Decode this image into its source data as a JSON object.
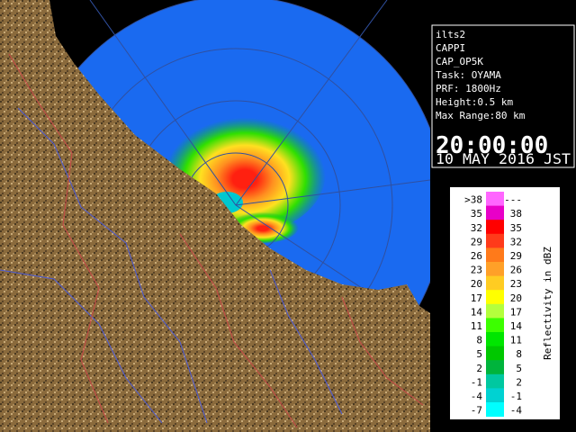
{
  "info": {
    "lines": [
      "ilts2",
      "CAPPI",
      "CAP_OP5K",
      "Task: OYAMA",
      "PRF: 1800Hz",
      "Height:0.5 km",
      "Max Range:80 km"
    ],
    "time": "20:00:00",
    "date": "10 MAY 2016 JST"
  },
  "legend": {
    "unit_label": "Reflectivity in dBZ",
    "rows": [
      {
        "low": ">38",
        "high": "---",
        "color": "#ff66ff"
      },
      {
        "low": "35",
        "high": "38",
        "color": "#e800c8"
      },
      {
        "low": "32",
        "high": "35",
        "color": "#ff0000"
      },
      {
        "low": "29",
        "high": "32",
        "color": "#ff3a1a"
      },
      {
        "low": "26",
        "high": "29",
        "color": "#ff7a1a"
      },
      {
        "low": "23",
        "high": "26",
        "color": "#ffa028"
      },
      {
        "low": "20",
        "high": "23",
        "color": "#ffcc22"
      },
      {
        "low": "17",
        "high": "20",
        "color": "#ffff00"
      },
      {
        "low": "14",
        "high": "17",
        "color": "#b4ff3c"
      },
      {
        "low": "11",
        "high": "14",
        "color": "#3cff00"
      },
      {
        "low": "8",
        "high": "11",
        "color": "#00e600"
      },
      {
        "low": "5",
        "high": "8",
        "color": "#00c800"
      },
      {
        "low": "2",
        "high": "5",
        "color": "#00b43c"
      },
      {
        "low": "-1",
        "high": "2",
        "color": "#00c8a0"
      },
      {
        "low": "-4",
        "high": "-1",
        "color": "#00d2d2"
      },
      {
        "low": "-7",
        "high": "-4",
        "color": "#00ffff"
      }
    ]
  }
}
